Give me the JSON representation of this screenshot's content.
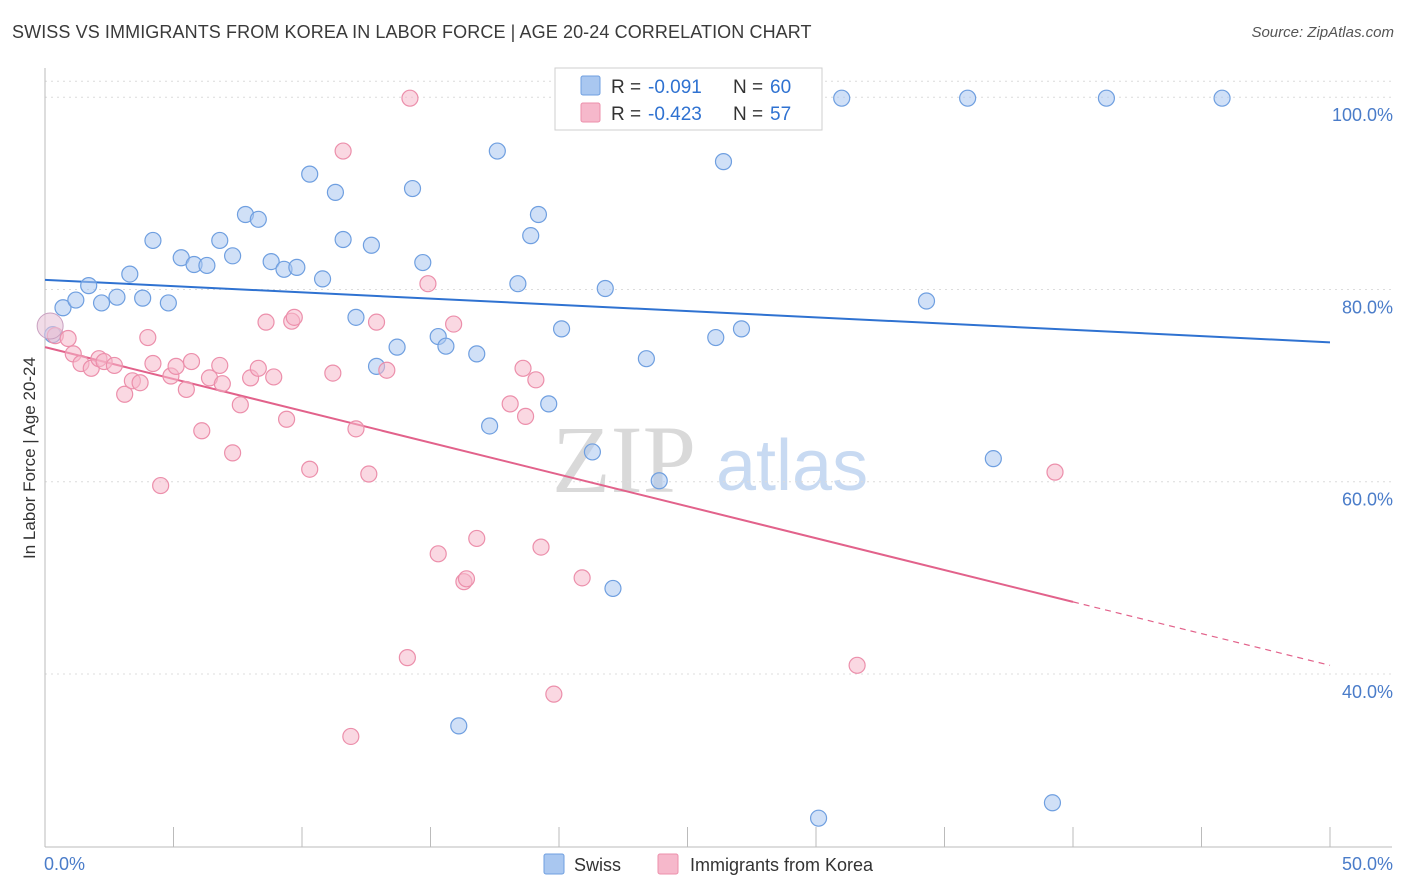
{
  "header": {
    "title": "SWISS VS IMMIGRANTS FROM KOREA IN LABOR FORCE | AGE 20-24 CORRELATION CHART",
    "source": "Source: ZipAtlas.com"
  },
  "watermark": {
    "zip": "ZIP",
    "atlas": "atlas"
  },
  "legend": {
    "r_label": "R =",
    "n_label": "N =",
    "rows": [
      {
        "r": "-0.091",
        "n": "60",
        "color": "#a9c7f0",
        "stroke": "#6f9fe0"
      },
      {
        "r": "-0.423",
        "n": "57",
        "color": "#f6b8cb",
        "stroke": "#ec8fab"
      }
    ]
  },
  "chart_data": {
    "type": "scatter",
    "title": "SWISS VS IMMIGRANTS FROM KOREA IN LABOR FORCE | AGE 20-24 CORRELATION CHART",
    "xlabel": "",
    "ylabel": "In Labor Force | Age 20-24",
    "xlim": [
      0,
      50
    ],
    "ylim": [
      22,
      102
    ],
    "x_tick_labels": [
      "0.0%",
      "50.0%"
    ],
    "y_ticks": [
      40,
      60,
      80,
      100
    ],
    "y_tick_labels": [
      "40.0%",
      "60.0%",
      "80.0%",
      "100.0%"
    ],
    "grid": true,
    "legend_position": "top-center",
    "series": [
      {
        "name": "Swiss",
        "color": "#a9c7f0",
        "stroke": "#6f9fe0",
        "trend_color": "#2f72d1",
        "trend": {
          "x0": 0,
          "y0": 81.0,
          "x1": 50,
          "y1": 74.5
        },
        "points": [
          [
            0.3,
            75.3
          ],
          [
            0.7,
            78.1
          ],
          [
            1.2,
            78.9
          ],
          [
            1.7,
            80.4
          ],
          [
            2.2,
            78.6
          ],
          [
            2.8,
            79.2
          ],
          [
            3.3,
            81.6
          ],
          [
            3.8,
            79.1
          ],
          [
            4.8,
            78.6
          ],
          [
            4.2,
            85.1
          ],
          [
            5.3,
            83.3
          ],
          [
            5.8,
            82.6
          ],
          [
            6.3,
            82.5
          ],
          [
            6.8,
            85.1
          ],
          [
            7.3,
            83.5
          ],
          [
            7.8,
            87.8
          ],
          [
            8.3,
            87.3
          ],
          [
            8.8,
            82.9
          ],
          [
            9.3,
            82.1
          ],
          [
            9.8,
            82.3
          ],
          [
            10.3,
            92.0
          ],
          [
            10.8,
            81.1
          ],
          [
            11.3,
            90.1
          ],
          [
            11.6,
            85.2
          ],
          [
            12.1,
            77.1
          ],
          [
            12.7,
            84.6
          ],
          [
            12.9,
            72.0
          ],
          [
            13.7,
            74.0
          ],
          [
            14.3,
            90.5
          ],
          [
            14.7,
            82.8
          ],
          [
            15.3,
            75.1
          ],
          [
            15.6,
            74.1
          ],
          [
            16.8,
            73.3
          ],
          [
            17.3,
            65.8
          ],
          [
            17.6,
            94.4
          ],
          [
            18.4,
            80.6
          ],
          [
            18.9,
            85.6
          ],
          [
            19.2,
            87.8
          ],
          [
            19.6,
            68.1
          ],
          [
            20.1,
            75.9
          ],
          [
            21.3,
            63.1
          ],
          [
            21.8,
            80.1
          ],
          [
            22.6,
            99.9
          ],
          [
            23.4,
            72.8
          ],
          [
            23.9,
            60.1
          ],
          [
            24.9,
            99.9
          ],
          [
            26.1,
            75.0
          ],
          [
            26.4,
            93.3
          ],
          [
            27.1,
            75.9
          ],
          [
            30.1,
            25.0
          ],
          [
            31.0,
            99.9
          ],
          [
            34.3,
            78.8
          ],
          [
            35.9,
            99.9
          ],
          [
            36.9,
            62.4
          ],
          [
            39.2,
            26.6
          ],
          [
            41.3,
            99.9
          ],
          [
            45.8,
            99.9
          ],
          [
            16.1,
            34.6
          ],
          [
            22.1,
            48.9
          ],
          [
            24.1,
            99.9
          ]
        ]
      },
      {
        "name": "Immigrants from Korea",
        "color": "#f6b8cb",
        "stroke": "#ec8fab",
        "trend_color": "#e2628b",
        "trend": {
          "x0": 0,
          "y0": 74.0,
          "x1": 40,
          "y1": 47.5
        },
        "trend_dashed": {
          "x0": 40,
          "y0": 47.5,
          "x1": 50,
          "y1": 40.9
        },
        "points": [
          [
            0.4,
            75.2
          ],
          [
            0.9,
            74.9
          ],
          [
            1.1,
            73.3
          ],
          [
            1.4,
            72.3
          ],
          [
            1.8,
            71.8
          ],
          [
            2.1,
            72.8
          ],
          [
            2.3,
            72.5
          ],
          [
            2.7,
            72.1
          ],
          [
            3.1,
            69.1
          ],
          [
            3.4,
            70.5
          ],
          [
            3.7,
            70.3
          ],
          [
            4.0,
            75.0
          ],
          [
            4.2,
            72.3
          ],
          [
            4.5,
            59.6
          ],
          [
            4.9,
            71.0
          ],
          [
            5.1,
            72.0
          ],
          [
            5.5,
            69.6
          ],
          [
            5.7,
            72.5
          ],
          [
            6.1,
            65.3
          ],
          [
            6.4,
            70.8
          ],
          [
            6.8,
            72.1
          ],
          [
            6.9,
            70.2
          ],
          [
            7.3,
            63.0
          ],
          [
            7.6,
            68.0
          ],
          [
            8.0,
            70.8
          ],
          [
            8.3,
            71.8
          ],
          [
            8.6,
            76.6
          ],
          [
            8.9,
            70.9
          ],
          [
            9.4,
            66.5
          ],
          [
            9.6,
            76.7
          ],
          [
            9.7,
            77.1
          ],
          [
            10.3,
            61.3
          ],
          [
            11.2,
            71.3
          ],
          [
            11.6,
            94.4
          ],
          [
            11.9,
            33.5
          ],
          [
            12.1,
            65.5
          ],
          [
            12.6,
            60.8
          ],
          [
            12.9,
            76.6
          ],
          [
            13.3,
            71.6
          ],
          [
            14.1,
            41.7
          ],
          [
            14.9,
            80.6
          ],
          [
            15.3,
            52.5
          ],
          [
            15.9,
            76.4
          ],
          [
            16.3,
            49.6
          ],
          [
            16.4,
            49.9
          ],
          [
            16.8,
            54.1
          ],
          [
            18.1,
            68.1
          ],
          [
            18.6,
            71.8
          ],
          [
            18.7,
            66.8
          ],
          [
            19.1,
            70.6
          ],
          [
            19.3,
            53.2
          ],
          [
            19.8,
            37.9
          ],
          [
            20.9,
            50.0
          ],
          [
            24.4,
            99.9
          ],
          [
            31.6,
            40.9
          ],
          [
            39.3,
            61.0
          ],
          [
            14.2,
            99.9
          ]
        ]
      }
    ]
  }
}
